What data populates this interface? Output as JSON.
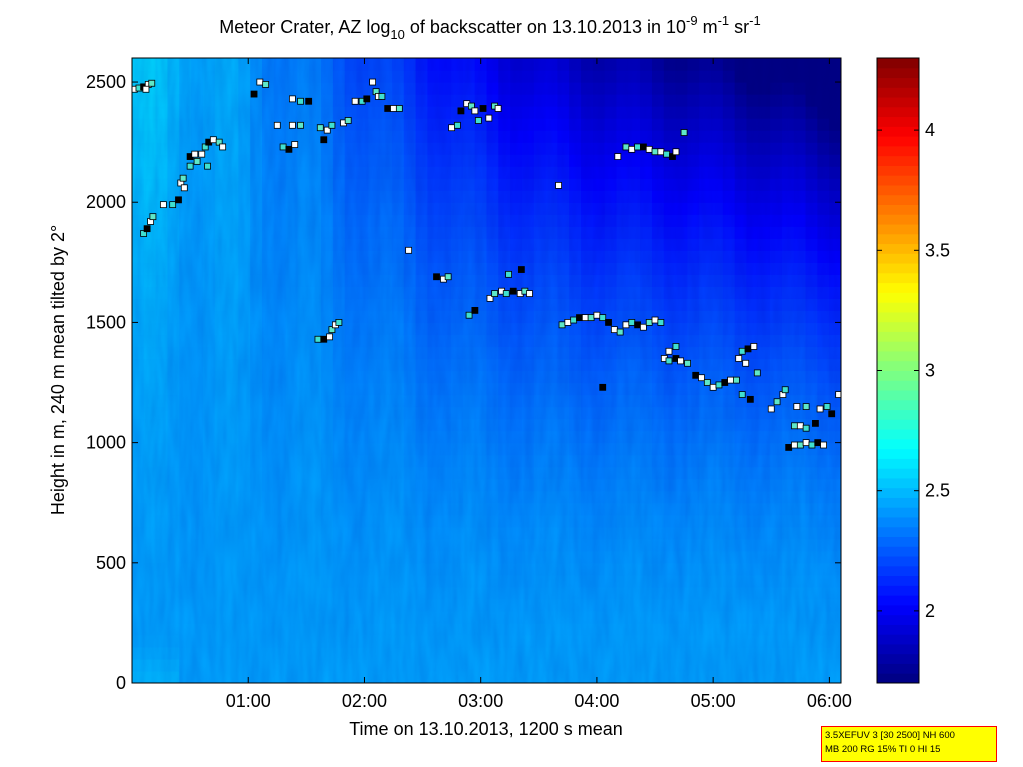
{
  "chart_data": {
    "type": "heatmap",
    "title_parts": {
      "t1": "Meteor Crater, AZ log",
      "t1_sub": "10",
      "t2": " of backscatter on 13.10.2013 in 10",
      "t2_sup": "-9",
      "t3": " m",
      "t3_sup": "-1",
      "t4": " sr",
      "t4_sup": "-1"
    },
    "xlabel": "Time on 13.10.2013, 1200 s mean",
    "ylabel": "Height in m, 240 m mean tilted by 2°",
    "x_unit": "hours",
    "xlim": [
      0.0,
      6.1
    ],
    "ylim": [
      0,
      2600
    ],
    "x_ticks": [
      {
        "v": 1,
        "label": "01:00"
      },
      {
        "v": 2,
        "label": "02:00"
      },
      {
        "v": 3,
        "label": "03:00"
      },
      {
        "v": 4,
        "label": "04:00"
      },
      {
        "v": 5,
        "label": "05:00"
      },
      {
        "v": 6,
        "label": "06:00"
      }
    ],
    "y_ticks": [
      {
        "v": 0,
        "label": "0"
      },
      {
        "v": 500,
        "label": "500"
      },
      {
        "v": 1000,
        "label": "1000"
      },
      {
        "v": 1500,
        "label": "1500"
      },
      {
        "v": 2000,
        "label": "2000"
      },
      {
        "v": 2500,
        "label": "2500"
      }
    ],
    "colorbar": {
      "range": [
        1.7,
        4.3
      ],
      "ticks": [
        {
          "v": 2,
          "label": "2"
        },
        {
          "v": 2.5,
          "label": "2.5"
        },
        {
          "v": 3,
          "label": "3"
        },
        {
          "v": 3.5,
          "label": "3.5"
        },
        {
          "v": 4,
          "label": "4"
        }
      ],
      "colormap": "jet"
    },
    "field_description_values": {
      "surface_value": 2.45,
      "upper_left_value": 2.62,
      "upper_right_value": 1.75
    },
    "markers": [
      [
        0.02,
        2470
      ],
      [
        0.06,
        2475
      ],
      [
        0.1,
        2480
      ],
      [
        0.14,
        2490
      ],
      [
        0.17,
        2495
      ],
      [
        0.12,
        2470
      ],
      [
        0.1,
        1870
      ],
      [
        0.13,
        1890
      ],
      [
        0.16,
        1920
      ],
      [
        0.18,
        1940
      ],
      [
        0.27,
        1990
      ],
      [
        0.35,
        1990
      ],
      [
        0.4,
        2010
      ],
      [
        0.42,
        2080
      ],
      [
        0.44,
        2100
      ],
      [
        0.45,
        2060
      ],
      [
        0.5,
        2150
      ],
      [
        0.5,
        2190
      ],
      [
        0.54,
        2200
      ],
      [
        0.56,
        2170
      ],
      [
        0.6,
        2200
      ],
      [
        0.63,
        2230
      ],
      [
        0.66,
        2250
      ],
      [
        0.7,
        2260
      ],
      [
        0.75,
        2250
      ],
      [
        0.78,
        2230
      ],
      [
        0.65,
        2150
      ],
      [
        1.05,
        2450
      ],
      [
        1.1,
        2500
      ],
      [
        1.15,
        2490
      ],
      [
        1.25,
        2320
      ],
      [
        1.3,
        2230
      ],
      [
        1.35,
        2220
      ],
      [
        1.38,
        2320
      ],
      [
        1.45,
        2320
      ],
      [
        1.38,
        2430
      ],
      [
        1.45,
        2420
      ],
      [
        1.52,
        2420
      ],
      [
        1.4,
        2240
      ],
      [
        1.62,
        2310
      ],
      [
        1.68,
        2300
      ],
      [
        1.72,
        2320
      ],
      [
        1.65,
        2260
      ],
      [
        1.82,
        2330
      ],
      [
        1.86,
        2340
      ],
      [
        1.92,
        2420
      ],
      [
        1.98,
        2420
      ],
      [
        2.02,
        2430
      ],
      [
        2.07,
        2500
      ],
      [
        2.1,
        2460
      ],
      [
        2.12,
        2440
      ],
      [
        2.15,
        2440
      ],
      [
        2.2,
        2390
      ],
      [
        2.25,
        2390
      ],
      [
        2.3,
        2390
      ],
      [
        2.38,
        1800
      ],
      [
        1.6,
        1430
      ],
      [
        1.65,
        1430
      ],
      [
        1.7,
        1440
      ],
      [
        1.72,
        1470
      ],
      [
        1.75,
        1490
      ],
      [
        1.78,
        1500
      ],
      [
        2.62,
        1690
      ],
      [
        2.68,
        1680
      ],
      [
        2.72,
        1690
      ],
      [
        2.75,
        2310
      ],
      [
        2.8,
        2320
      ],
      [
        2.83,
        2380
      ],
      [
        2.88,
        2410
      ],
      [
        2.92,
        2400
      ],
      [
        2.95,
        2380
      ],
      [
        2.98,
        2340
      ],
      [
        3.02,
        2390
      ],
      [
        3.07,
        2350
      ],
      [
        3.12,
        2400
      ],
      [
        3.15,
        2390
      ],
      [
        2.9,
        1530
      ],
      [
        2.95,
        1550
      ],
      [
        3.08,
        1600
      ],
      [
        3.12,
        1620
      ],
      [
        3.18,
        1630
      ],
      [
        3.22,
        1620
      ],
      [
        3.28,
        1630
      ],
      [
        3.34,
        1620
      ],
      [
        3.38,
        1630
      ],
      [
        3.42,
        1620
      ],
      [
        3.24,
        1700
      ],
      [
        3.35,
        1720
      ],
      [
        3.67,
        2070
      ],
      [
        3.7,
        1490
      ],
      [
        3.75,
        1500
      ],
      [
        3.8,
        1510
      ],
      [
        3.85,
        1520
      ],
      [
        3.9,
        1520
      ],
      [
        3.95,
        1520
      ],
      [
        4.0,
        1530
      ],
      [
        4.05,
        1520
      ],
      [
        4.1,
        1500
      ],
      [
        4.15,
        1470
      ],
      [
        4.2,
        1460
      ],
      [
        4.25,
        1490
      ],
      [
        4.3,
        1500
      ],
      [
        4.35,
        1490
      ],
      [
        4.4,
        1480
      ],
      [
        4.45,
        1500
      ],
      [
        4.5,
        1510
      ],
      [
        4.55,
        1500
      ],
      [
        4.05,
        1230
      ],
      [
        4.18,
        2190
      ],
      [
        4.25,
        2230
      ],
      [
        4.3,
        2220
      ],
      [
        4.35,
        2230
      ],
      [
        4.4,
        2230
      ],
      [
        4.45,
        2220
      ],
      [
        4.5,
        2210
      ],
      [
        4.55,
        2210
      ],
      [
        4.6,
        2200
      ],
      [
        4.65,
        2190
      ],
      [
        4.68,
        2210
      ],
      [
        4.75,
        2290
      ],
      [
        4.58,
        1350
      ],
      [
        4.62,
        1340
      ],
      [
        4.68,
        1350
      ],
      [
        4.72,
        1340
      ],
      [
        4.78,
        1330
      ],
      [
        4.62,
        1380
      ],
      [
        4.68,
        1400
      ],
      [
        4.85,
        1280
      ],
      [
        4.9,
        1270
      ],
      [
        4.95,
        1250
      ],
      [
        5.0,
        1230
      ],
      [
        5.05,
        1240
      ],
      [
        5.1,
        1250
      ],
      [
        5.15,
        1260
      ],
      [
        5.2,
        1260
      ],
      [
        5.22,
        1350
      ],
      [
        5.25,
        1380
      ],
      [
        5.3,
        1390
      ],
      [
        5.35,
        1400
      ],
      [
        5.38,
        1290
      ],
      [
        5.28,
        1330
      ],
      [
        5.25,
        1200
      ],
      [
        5.32,
        1180
      ],
      [
        5.5,
        1140
      ],
      [
        5.55,
        1170
      ],
      [
        5.6,
        1200
      ],
      [
        5.62,
        1220
      ],
      [
        5.65,
        980
      ],
      [
        5.7,
        990
      ],
      [
        5.75,
        990
      ],
      [
        5.8,
        1000
      ],
      [
        5.85,
        990
      ],
      [
        5.9,
        1000
      ],
      [
        5.95,
        990
      ],
      [
        5.7,
        1070
      ],
      [
        5.75,
        1070
      ],
      [
        5.8,
        1060
      ],
      [
        5.88,
        1080
      ],
      [
        5.72,
        1150
      ],
      [
        5.8,
        1150
      ],
      [
        5.92,
        1140
      ],
      [
        5.98,
        1150
      ],
      [
        6.02,
        1120
      ],
      [
        6.08,
        1200
      ]
    ]
  },
  "annotation": {
    "line1": "3.5XEFUV 3 [30 2500] NH 600",
    "line2": "MB 200 RG 15% TI 0 HI 15"
  }
}
